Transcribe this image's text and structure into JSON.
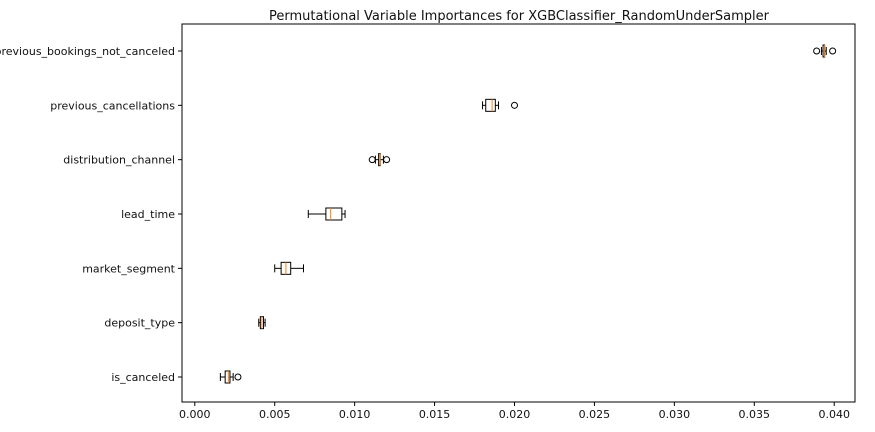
{
  "chart_data": {
    "type": "boxplot",
    "orientation": "horizontal",
    "title": "Permutational Variable Importances for XGBClassifier_RandomUnderSampler",
    "xlabel": "",
    "ylabel": "",
    "xlim": [
      -0.0008,
      0.0413
    ],
    "xticks": [
      0.0,
      0.005,
      0.01,
      0.015,
      0.02,
      0.025,
      0.03,
      0.035,
      0.04
    ],
    "xtick_labels": [
      "0.000",
      "0.005",
      "0.010",
      "0.015",
      "0.020",
      "0.025",
      "0.030",
      "0.035",
      "0.040"
    ],
    "grid": false,
    "categories": [
      "previous_bookings_not_canceled",
      "previous_cancellations",
      "distribution_channel",
      "lead_time",
      "market_segment",
      "deposit_type",
      "is_canceled"
    ],
    "boxes": [
      {
        "label": "previous_bookings_not_canceled",
        "whisker_low": 0.0392,
        "q1": 0.0393,
        "median": 0.0394,
        "q3": 0.0394,
        "whisker_high": 0.0395,
        "outliers": [
          0.0389,
          0.0399
        ]
      },
      {
        "label": "previous_cancellations",
        "whisker_low": 0.018,
        "q1": 0.0182,
        "median": 0.0186,
        "q3": 0.0188,
        "whisker_high": 0.019,
        "outliers": [
          0.02
        ]
      },
      {
        "label": "distribution_channel",
        "whisker_low": 0.0113,
        "q1": 0.0115,
        "median": 0.0116,
        "q3": 0.0116,
        "whisker_high": 0.0118,
        "outliers": [
          0.0111,
          0.012
        ]
      },
      {
        "label": "lead_time",
        "whisker_low": 0.0071,
        "q1": 0.0082,
        "median": 0.0085,
        "q3": 0.0092,
        "whisker_high": 0.0094,
        "outliers": []
      },
      {
        "label": "market_segment",
        "whisker_low": 0.005,
        "q1": 0.0054,
        "median": 0.0057,
        "q3": 0.006,
        "whisker_high": 0.0068,
        "outliers": []
      },
      {
        "label": "deposit_type",
        "whisker_low": 0.004,
        "q1": 0.0041,
        "median": 0.0042,
        "q3": 0.0043,
        "whisker_high": 0.0044,
        "outliers": []
      },
      {
        "label": "is_canceled",
        "whisker_low": 0.0016,
        "q1": 0.0019,
        "median": 0.0021,
        "q3": 0.0022,
        "whisker_high": 0.0024,
        "outliers": [
          0.0027
        ]
      }
    ],
    "colors": {
      "box_edge": "#000000",
      "median": "#ff7f0e",
      "background": "#ffffff"
    }
  }
}
